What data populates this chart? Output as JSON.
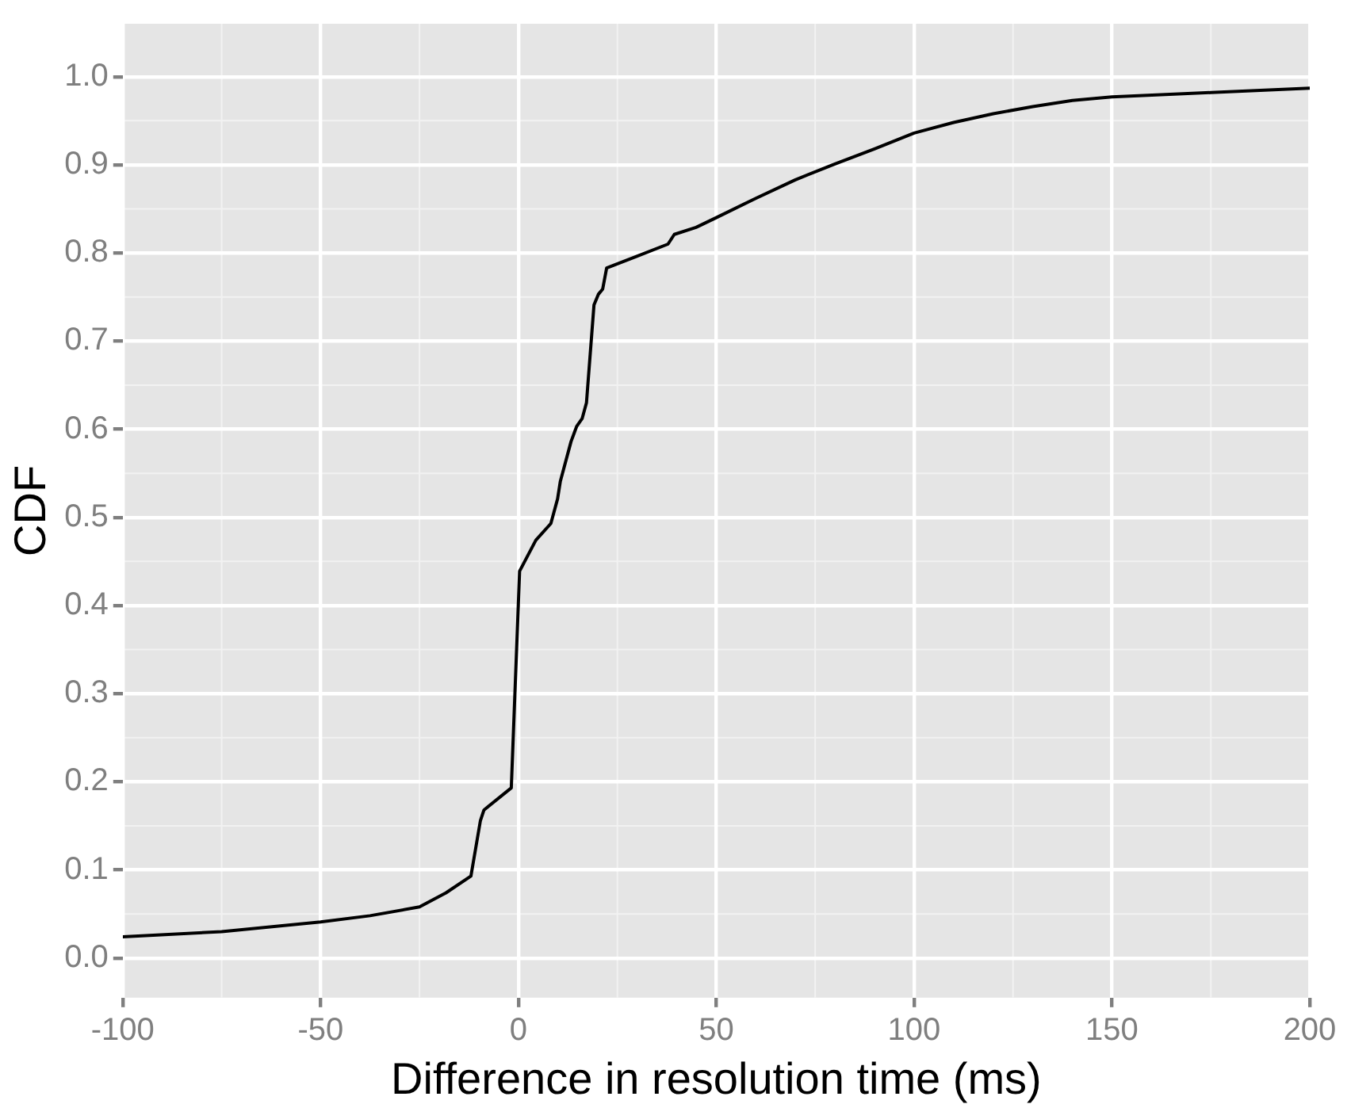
{
  "chart_data": {
    "type": "line",
    "xlabel": "Difference in resolution time (ms)",
    "ylabel": "CDF",
    "x": [
      -100,
      -75,
      -50,
      -37.5,
      -25,
      -18.3,
      -12,
      -9.6,
      -8.7,
      -1.8,
      0.3,
      4.4,
      8.2,
      9.9,
      10.6,
      13.3,
      14.7,
      16.1,
      17.2,
      19.1,
      20.2,
      21.3,
      22.3,
      29.8,
      37.8,
      39.4,
      44.9,
      50,
      60,
      70,
      80,
      90,
      100,
      110,
      120,
      130,
      140,
      150,
      175,
      200
    ],
    "series": [
      {
        "color": "#000000",
        "values": [
          0.024,
          0.03,
          0.041,
          0.048,
          0.058,
          0.074,
          0.093,
          0.156,
          0.168,
          0.193,
          0.439,
          0.474,
          0.493,
          0.521,
          0.541,
          0.586,
          0.603,
          0.612,
          0.63,
          0.741,
          0.753,
          0.759,
          0.783,
          0.796,
          0.81,
          0.821,
          0.829,
          0.84,
          0.862,
          0.883,
          0.901,
          0.918,
          0.936,
          0.948,
          0.958,
          0.966,
          0.973,
          0.977,
          0.982,
          0.987
        ]
      }
    ],
    "xlim": [
      -100,
      200
    ],
    "xticks": [
      -100,
      -50,
      0,
      50,
      100,
      150,
      200
    ],
    "ylim": [
      -0.045,
      1.06
    ],
    "yticks": [
      {
        "value": 0,
        "label": "0.0"
      },
      0.1,
      0.2,
      0.3,
      0.4,
      0.5,
      0.6,
      0.7,
      0.8,
      0.9,
      {
        "value": 1,
        "label": "1.0"
      }
    ],
    "grid": true,
    "legend": false,
    "marker": "none",
    "line_style": "solid"
  }
}
